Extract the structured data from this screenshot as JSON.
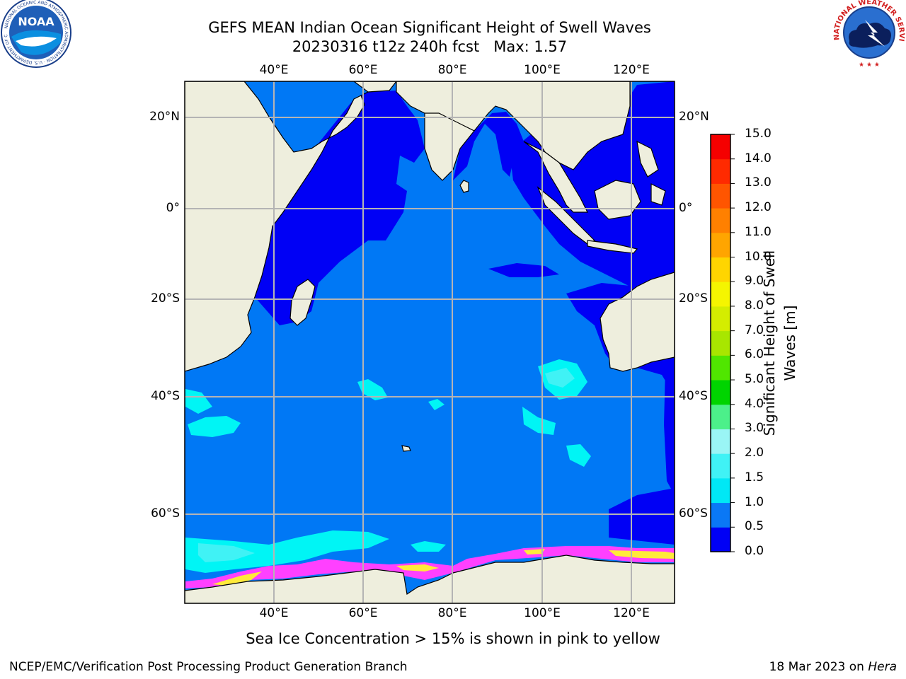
{
  "header": {
    "title_line1": "GEFS MEAN Indian Ocean Significant Height of Swell Waves",
    "title_line2": "20230316 t12z 240h fcst   Max: 1.57"
  },
  "logos": {
    "noaa_text": "NOAA",
    "noaa_ring": "NATIONAL OCEANIC AND ATMOSPHERIC ADMINISTRATION · U.S. DEPARTMENT OF COMMERCE",
    "nws_ring": "NATIONAL WEATHER SERVICE"
  },
  "axes": {
    "lon_labels": [
      "40°E",
      "60°E",
      "80°E",
      "100°E",
      "120°E"
    ],
    "lat_labels": [
      "20°N",
      "0°",
      "20°S",
      "40°S",
      "60°S"
    ]
  },
  "colorbar": {
    "label": "Significant Height of Swell Waves [m]",
    "label_line1": "Significant Height of Swell",
    "label_line2": "Waves [m]",
    "ticks": [
      "0.0",
      "0.5",
      "1.0",
      "1.5",
      "2.0",
      "3.0",
      "4.0",
      "5.0",
      "6.0",
      "7.0",
      "8.0",
      "9.0",
      "10.0",
      "11.0",
      "12.0",
      "13.0",
      "14.0",
      "15.0"
    ],
    "colors": [
      "#0000f5",
      "#0a78f5",
      "#00e8f5",
      "#40f2f5",
      "#9af5f5",
      "#4cf08a",
      "#00d400",
      "#50e600",
      "#a8e600",
      "#d4ed00",
      "#f5f500",
      "#ffd500",
      "#ffa500",
      "#ff8000",
      "#ff5500",
      "#ff2a00",
      "#f50000"
    ]
  },
  "colors": {
    "land": "#eeeedd",
    "ocean_deep": "#0078f5",
    "ocean_shallow": "#0000f5",
    "swell_cyan": "#00f5f5",
    "swell_light": "#40f2f5",
    "ice_pink": "#ff40ff",
    "ice_yellow": "#ffea3a",
    "grid": "#b4b4b4"
  },
  "footer": {
    "note": "Sea Ice Concentration > 15% is shown in pink to yellow",
    "left": "NCEP/EMC/Verification Post Processing Product Generation Branch",
    "right_date": "18 Mar 2023 on ",
    "right_machine": "Hera"
  }
}
